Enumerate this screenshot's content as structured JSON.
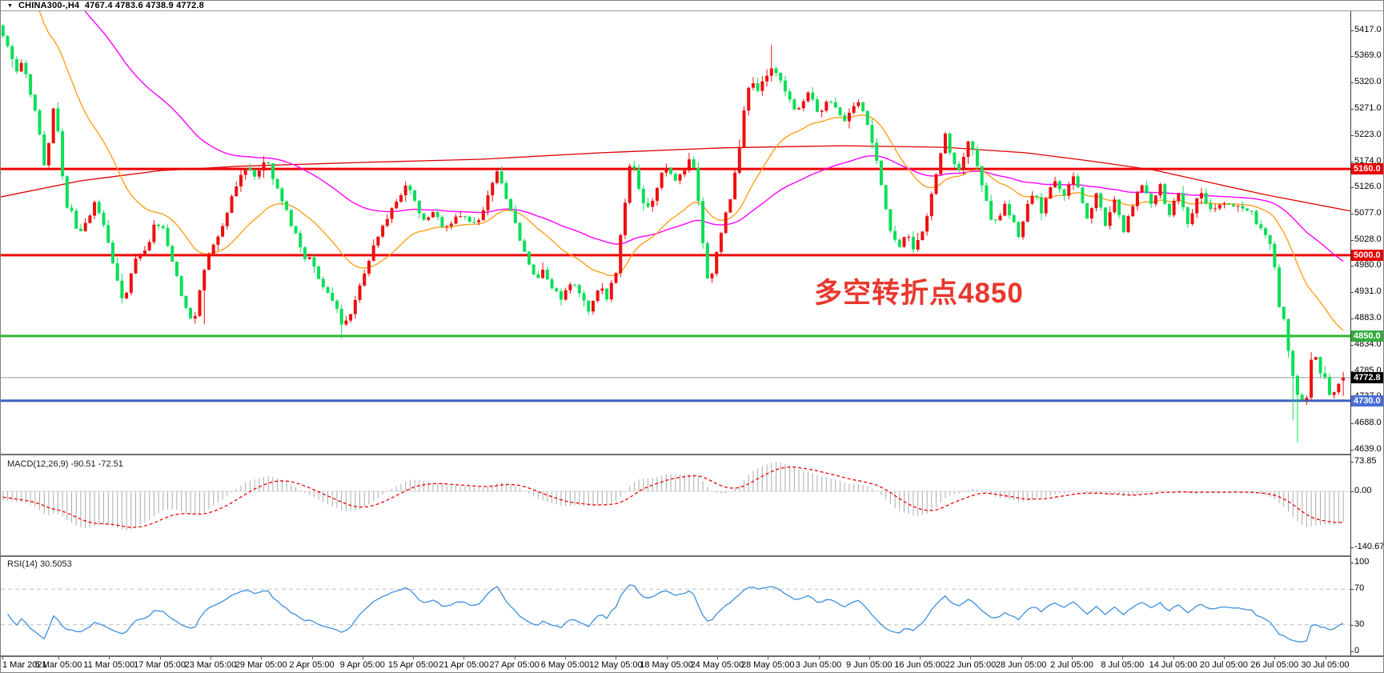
{
  "window": {
    "title": "CHINA300-,H4  4767.4 4783.6 4738.9 4772.8",
    "dropdown_icon": "▼"
  },
  "chart_data": {
    "type": "candlestick",
    "symbol": "CHINA300-",
    "timeframe": "H4",
    "last_candle": {
      "open": 4767.4,
      "high": 4783.6,
      "low": 4738.9,
      "close": 4772.8
    },
    "colors": {
      "up_candle": "#ee0f0f",
      "down_candle": "#0cde59",
      "level_red": "#f20000",
      "level_green": "#2eb82e",
      "level_blue": "#3e62c4",
      "current_price_line": "#8f9aa0",
      "ma_fast_orange": "#ffa01e",
      "ma_medium_magenta": "#ff00ff",
      "ma_slow_red": "#dd0000",
      "macd_histogram": "#ababab",
      "macd_signal": "#f20000",
      "rsi_line": "#3e8fde",
      "rsi_levels": "#bfbfbf"
    },
    "price_axis": {
      "ticks": [
        "5417.0",
        "5369.0",
        "5320.0",
        "5271.0",
        "5223.0",
        "5174.0",
        "5126.0",
        "5077.0",
        "5028.0",
        "4980.0",
        "4931.0",
        "4883.0",
        "4834.0",
        "4785.0",
        "4737.0",
        "4688.0",
        "4639.0"
      ]
    },
    "time_axis": {
      "labels": [
        "1 Mar 2021",
        "5 Mar 05:00",
        "11 Mar 05:00",
        "17 Mar 05:00",
        "23 Mar 05:00",
        "29 Mar 05:00",
        "2 Apr 05:00",
        "9 Apr 05:00",
        "15 Apr 05:00",
        "21 Apr 05:00",
        "27 Apr 05:00",
        "6 May 05:00",
        "12 May 05:00",
        "18 May 05:00",
        "24 May 05:00",
        "28 May 05:00",
        "3 Jun 05:00",
        "9 Jun 05:00",
        "16 Jun 05:00",
        "22 Jun 05:00",
        "28 Jun 05:00",
        "2 Jul 05:00",
        "8 Jul 05:00",
        "14 Jul 05:00",
        "20 Jul 05:00",
        "26 Jul 05:00",
        "30 Jul 05:00"
      ]
    },
    "horizontal_levels": [
      {
        "value": 5160.0,
        "label": "5160.0",
        "color": "#f20000",
        "badge_bg": "#e80000"
      },
      {
        "value": 5000.0,
        "label": "5000.0",
        "color": "#f20000",
        "badge_bg": "#e80000"
      },
      {
        "value": 4850.0,
        "label": "4850.0",
        "color": "#2eb82e",
        "badge_bg": "#34ad3c"
      },
      {
        "value": 4730.0,
        "label": "4730.0",
        "color": "#3e62c4",
        "badge_bg": "#4a6fd6"
      }
    ],
    "current_price": {
      "value": 4772.8,
      "label": "4772.8",
      "badge_bg": "#000000"
    },
    "annotation": {
      "text": "多空转折点4850",
      "color": "#e8382e"
    },
    "price_path": [
      [
        0,
        5420
      ],
      [
        10,
        5385
      ],
      [
        20,
        5340
      ],
      [
        28,
        5360
      ],
      [
        36,
        5310
      ],
      [
        45,
        5255
      ],
      [
        55,
        5160
      ],
      [
        62,
        5230
      ],
      [
        68,
        5300
      ],
      [
        75,
        5165
      ],
      [
        82,
        5095
      ],
      [
        90,
        5075
      ],
      [
        100,
        5040
      ],
      [
        110,
        5075
      ],
      [
        120,
        5100
      ],
      [
        130,
        5055
      ],
      [
        140,
        4990
      ],
      [
        148,
        4935
      ],
      [
        154,
        4905
      ],
      [
        162,
        4965
      ],
      [
        172,
        5005
      ],
      [
        182,
        5015
      ],
      [
        192,
        5055
      ],
      [
        202,
        5060
      ],
      [
        212,
        5000
      ],
      [
        222,
        4945
      ],
      [
        232,
        4905
      ],
      [
        240,
        4880
      ],
      [
        250,
        4950
      ],
      [
        260,
        5000
      ],
      [
        272,
        5040
      ],
      [
        284,
        5085
      ],
      [
        296,
        5130
      ],
      [
        308,
        5172
      ],
      [
        318,
        5148
      ],
      [
        330,
        5180
      ],
      [
        342,
        5140
      ],
      [
        354,
        5090
      ],
      [
        366,
        5048
      ],
      [
        378,
        5000
      ],
      [
        388,
        4988
      ],
      [
        398,
        4948
      ],
      [
        410,
        4928
      ],
      [
        420,
        4898
      ],
      [
        428,
        4866
      ],
      [
        438,
        4895
      ],
      [
        450,
        4945
      ],
      [
        462,
        5000
      ],
      [
        474,
        5042
      ],
      [
        486,
        5082
      ],
      [
        498,
        5112
      ],
      [
        508,
        5132
      ],
      [
        518,
        5092
      ],
      [
        530,
        5060
      ],
      [
        542,
        5082
      ],
      [
        554,
        5052
      ],
      [
        566,
        5068
      ],
      [
        578,
        5082
      ],
      [
        588,
        5052
      ],
      [
        600,
        5072
      ],
      [
        610,
        5122
      ],
      [
        620,
        5160
      ],
      [
        632,
        5102
      ],
      [
        644,
        5050
      ],
      [
        656,
        4992
      ],
      [
        668,
        4950
      ],
      [
        678,
        4972
      ],
      [
        690,
        4940
      ],
      [
        702,
        4920
      ],
      [
        714,
        4952
      ],
      [
        726,
        4930
      ],
      [
        736,
        4892
      ],
      [
        748,
        4940
      ],
      [
        758,
        4918
      ],
      [
        770,
        4980
      ],
      [
        780,
        5105
      ],
      [
        788,
        5188
      ],
      [
        798,
        5112
      ],
      [
        810,
        5082
      ],
      [
        822,
        5140
      ],
      [
        832,
        5162
      ],
      [
        844,
        5130
      ],
      [
        856,
        5172
      ],
      [
        864,
        5180
      ],
      [
        872,
        5092
      ],
      [
        879,
        4992
      ],
      [
        885,
        4945
      ],
      [
        896,
        5012
      ],
      [
        907,
        5082
      ],
      [
        918,
        5158
      ],
      [
        925,
        5228
      ],
      [
        931,
        5288
      ],
      [
        937,
        5320
      ],
      [
        947,
        5308
      ],
      [
        958,
        5338
      ],
      [
        964,
        5355
      ],
      [
        970,
        5330
      ],
      [
        982,
        5300
      ],
      [
        993,
        5262
      ],
      [
        1004,
        5282
      ],
      [
        1010,
        5302
      ],
      [
        1022,
        5262
      ],
      [
        1033,
        5290
      ],
      [
        1044,
        5268
      ],
      [
        1055,
        5242
      ],
      [
        1062,
        5270
      ],
      [
        1072,
        5290
      ],
      [
        1084,
        5242
      ],
      [
        1090,
        5200
      ],
      [
        1096,
        5158
      ],
      [
        1102,
        5112
      ],
      [
        1108,
        5068
      ],
      [
        1114,
        5030
      ],
      [
        1120,
        5010
      ],
      [
        1130,
        5040
      ],
      [
        1140,
        5012
      ],
      [
        1152,
        5050
      ],
      [
        1158,
        5082
      ],
      [
        1164,
        5122
      ],
      [
        1170,
        5162
      ],
      [
        1176,
        5202
      ],
      [
        1181,
        5232
      ],
      [
        1187,
        5182
      ],
      [
        1197,
        5162
      ],
      [
        1204,
        5192
      ],
      [
        1210,
        5212
      ],
      [
        1216,
        5182
      ],
      [
        1222,
        5152
      ],
      [
        1228,
        5120
      ],
      [
        1233,
        5082
      ],
      [
        1239,
        5052
      ],
      [
        1245,
        5072
      ],
      [
        1255,
        5092
      ],
      [
        1265,
        5062
      ],
      [
        1271,
        5032
      ],
      [
        1277,
        5062
      ],
      [
        1283,
        5092
      ],
      [
        1289,
        5112
      ],
      [
        1300,
        5082
      ],
      [
        1311,
        5122
      ],
      [
        1317,
        5142
      ],
      [
        1328,
        5112
      ],
      [
        1340,
        5142
      ],
      [
        1346,
        5122
      ],
      [
        1352,
        5092
      ],
      [
        1358,
        5062
      ],
      [
        1364,
        5092
      ],
      [
        1369,
        5112
      ],
      [
        1375,
        5082
      ],
      [
        1381,
        5052
      ],
      [
        1386,
        5082
      ],
      [
        1392,
        5102
      ],
      [
        1398,
        5072
      ],
      [
        1404,
        5042
      ],
      [
        1409,
        5072
      ],
      [
        1415,
        5092
      ],
      [
        1420,
        5112
      ],
      [
        1426,
        5132
      ],
      [
        1432,
        5112
      ],
      [
        1437,
        5092
      ],
      [
        1443,
        5112
      ],
      [
        1449,
        5132
      ],
      [
        1454,
        5102
      ],
      [
        1460,
        5072
      ],
      [
        1466,
        5092
      ],
      [
        1471,
        5112
      ],
      [
        1477,
        5092
      ],
      [
        1483,
        5062
      ],
      [
        1489,
        5082
      ],
      [
        1494,
        5102
      ],
      [
        1500,
        5112
      ],
      [
        1512,
        5082
      ],
      [
        1524,
        5100
      ],
      [
        1536,
        5086
      ],
      [
        1548,
        5096
      ],
      [
        1560,
        5082
      ],
      [
        1572,
        5060
      ],
      [
        1582,
        5030
      ],
      [
        1590,
        4985
      ],
      [
        1597,
        4905
      ],
      [
        1604,
        4875
      ],
      [
        1611,
        4800
      ],
      [
        1618,
        4738
      ],
      [
        1625,
        4728
      ],
      [
        1631,
        4732
      ],
      [
        1637,
        4800
      ],
      [
        1642,
        4812
      ],
      [
        1647,
        4788
      ],
      [
        1652,
        4802
      ],
      [
        1656,
        4762
      ],
      [
        1661,
        4742
      ],
      [
        1666,
        4752
      ],
      [
        1672,
        4768
      ],
      [
        1685,
        4772
      ]
    ],
    "moving_averages": {
      "fast": {
        "color": "#ffa01e",
        "period": 24,
        "seed": 5600
      },
      "medium": {
        "color": "#ff00ff",
        "period": 72,
        "seed": 5620
      },
      "slow": {
        "color": "#dd0000",
        "path": [
          [
            0,
            5108
          ],
          [
            100,
            5138
          ],
          [
            200,
            5157
          ],
          [
            300,
            5165
          ],
          [
            450,
            5172
          ],
          [
            600,
            5178
          ],
          [
            750,
            5190
          ],
          [
            900,
            5199
          ],
          [
            1050,
            5203
          ],
          [
            1180,
            5200
          ],
          [
            1280,
            5190
          ],
          [
            1360,
            5175
          ],
          [
            1440,
            5158
          ],
          [
            1510,
            5135
          ],
          [
            1580,
            5112
          ],
          [
            1640,
            5095
          ],
          [
            1686,
            5082
          ]
        ]
      }
    },
    "indicators": {
      "macd": {
        "label": "MACD(12,26,9) -90.51 -72.51",
        "fast": 12,
        "slow": 26,
        "signal": 9,
        "macd_value": -90.51,
        "signal_value": -72.51,
        "axis_ticks": [
          "73.85",
          "0.00",
          "-140.67"
        ]
      },
      "rsi": {
        "label": "RSI(14) 30.5053",
        "period": 14,
        "value": 30.5053,
        "axis_ticks": [
          "100",
          "70",
          "30",
          "0"
        ],
        "level_lines": [
          70,
          30
        ]
      }
    }
  }
}
